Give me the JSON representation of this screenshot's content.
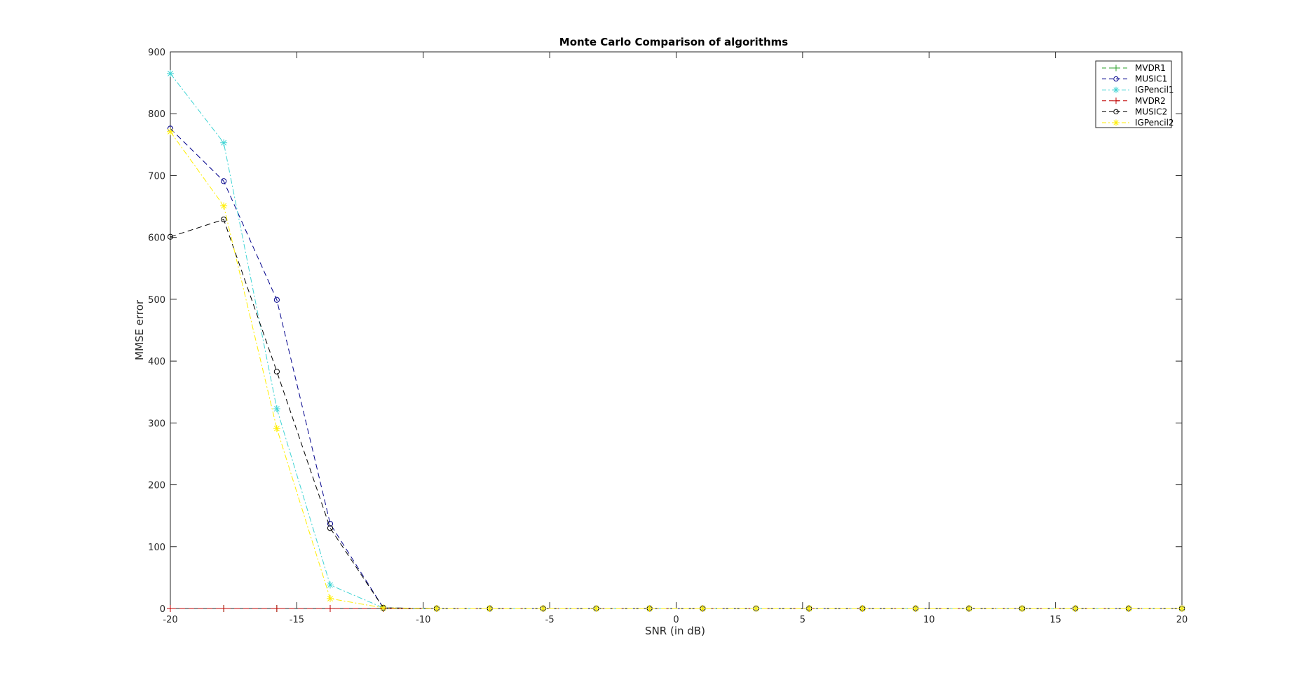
{
  "chart_data": {
    "type": "line",
    "title": "Monte Carlo Comparison of algorithms",
    "xlabel": "SNR (in dB)",
    "ylabel": "MMSE error",
    "xlim": [
      -20,
      20
    ],
    "ylim": [
      0,
      900
    ],
    "xticks": [
      -20,
      -15,
      -10,
      -5,
      0,
      5,
      10,
      15,
      20
    ],
    "yticks": [
      0,
      100,
      200,
      300,
      400,
      500,
      600,
      700,
      800,
      900
    ],
    "grid": false,
    "legend_position": "top-right",
    "x": [
      -20,
      -17.89,
      -15.79,
      -13.68,
      -11.58,
      -9.47,
      -7.37,
      -5.26,
      -3.16,
      -1.05,
      1.05,
      3.16,
      5.26,
      7.37,
      9.47,
      11.58,
      13.68,
      15.79,
      17.89,
      20
    ],
    "series": [
      {
        "name": "MVDR1",
        "color": "#2ca02c",
        "marker": "plus",
        "dash": "8,5",
        "values": [
          0,
          0,
          0,
          0,
          0,
          0,
          0,
          0,
          0,
          0,
          0,
          0,
          0,
          0,
          0,
          0,
          0,
          0,
          0,
          0
        ]
      },
      {
        "name": "MUSIC1",
        "color": "#00008b",
        "marker": "circle",
        "dash": "8,5",
        "values": [
          776,
          691,
          499,
          137,
          1,
          0,
          0,
          0,
          0,
          0,
          0,
          0,
          0,
          0,
          0,
          0,
          0,
          0,
          0,
          0
        ]
      },
      {
        "name": "IGPencil1",
        "color": "#3fd4d4",
        "marker": "star",
        "dash": "8,3,2,3",
        "values": [
          865,
          753,
          323,
          38,
          1,
          0,
          0,
          0,
          0,
          0,
          0,
          0,
          0,
          0,
          0,
          0,
          0,
          0,
          0,
          0
        ]
      },
      {
        "name": "MVDR2",
        "color": "#c00000",
        "marker": "plus",
        "dash": "8,5",
        "values": [
          0,
          0,
          0,
          0,
          0,
          0,
          0,
          0,
          0,
          0,
          0,
          0,
          0,
          0,
          0,
          0,
          0,
          0,
          0,
          0
        ]
      },
      {
        "name": "MUSIC2",
        "color": "#000000",
        "marker": "circle",
        "dash": "8,5",
        "values": [
          601,
          629,
          383,
          130,
          1,
          0,
          0,
          0,
          0,
          0,
          0,
          0,
          0,
          0,
          0,
          0,
          0,
          0,
          0,
          0
        ]
      },
      {
        "name": "IGPencil2",
        "color": "#ffee00",
        "marker": "star",
        "dash": "8,3,2,3",
        "values": [
          771,
          651,
          291,
          16,
          1,
          0,
          0,
          0,
          0,
          0,
          0,
          0,
          0,
          0,
          0,
          0,
          0,
          0,
          0,
          0
        ]
      }
    ]
  }
}
